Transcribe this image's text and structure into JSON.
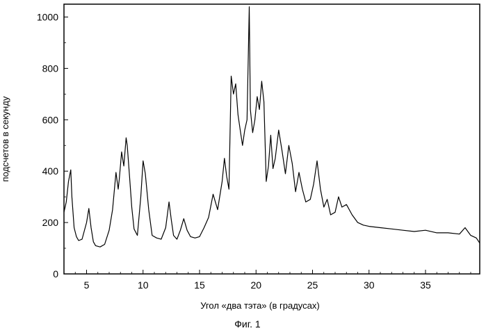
{
  "chart_data": {
    "type": "line",
    "title": "",
    "xlabel": "Угол «два тэта» (в градусах)",
    "ylabel": "подсчетов в секунду",
    "caption": "Фиг. 1",
    "xlim": [
      3,
      39.8
    ],
    "ylim": [
      0,
      1050
    ],
    "x_ticks": [
      5,
      10,
      15,
      20,
      25,
      30,
      35
    ],
    "y_ticks": [
      0,
      200,
      400,
      600,
      800,
      1000
    ],
    "grid": false,
    "legend": "none",
    "line_color": "#000000",
    "series": [
      {
        "x": [
          3.0,
          3.2,
          3.4,
          3.6,
          3.7,
          3.9,
          4.1,
          4.3,
          4.6,
          5.0,
          5.2,
          5.4,
          5.6,
          5.8,
          6.2,
          6.6,
          7.0,
          7.3,
          7.6,
          7.8,
          7.9,
          8.1,
          8.3,
          8.5,
          8.6,
          8.8,
          9.0,
          9.2,
          9.5,
          9.8,
          10.0,
          10.2,
          10.5,
          10.8,
          11.2,
          11.6,
          12.0,
          12.3,
          12.5,
          12.7,
          13.0,
          13.3,
          13.6,
          13.9,
          14.2,
          14.6,
          15.0,
          15.4,
          15.8,
          16.2,
          16.6,
          17.0,
          17.2,
          17.4,
          17.6,
          17.8,
          18.0,
          18.2,
          18.4,
          18.6,
          18.8,
          19.0,
          19.2,
          19.4,
          19.5,
          19.7,
          19.9,
          20.1,
          20.3,
          20.5,
          20.7,
          20.9,
          21.1,
          21.3,
          21.5,
          21.7,
          22.0,
          22.3,
          22.6,
          22.9,
          23.2,
          23.5,
          23.8,
          24.1,
          24.4,
          24.8,
          25.1,
          25.4,
          25.7,
          26.0,
          26.3,
          26.6,
          27.0,
          27.3,
          27.6,
          28.0,
          28.5,
          29.0,
          29.5,
          30.0,
          31.0,
          32.0,
          33.0,
          34.0,
          35.0,
          36.0,
          37.0,
          38.0,
          38.5,
          39.0,
          39.5,
          39.8
        ],
        "y": [
          240,
          280,
          360,
          405,
          300,
          180,
          145,
          130,
          135,
          200,
          255,
          180,
          125,
          110,
          105,
          115,
          170,
          250,
          395,
          330,
          370,
          475,
          420,
          530,
          500,
          380,
          260,
          175,
          150,
          300,
          440,
          390,
          250,
          150,
          140,
          135,
          180,
          280,
          210,
          150,
          135,
          170,
          215,
          170,
          145,
          140,
          145,
          180,
          220,
          310,
          250,
          360,
          450,
          380,
          330,
          770,
          700,
          740,
          620,
          560,
          500,
          560,
          600,
          1040,
          640,
          550,
          600,
          690,
          640,
          750,
          670,
          360,
          420,
          540,
          410,
          450,
          560,
          480,
          390,
          500,
          430,
          320,
          395,
          330,
          280,
          290,
          350,
          440,
          330,
          260,
          290,
          230,
          240,
          300,
          260,
          270,
          230,
          200,
          190,
          185,
          180,
          175,
          170,
          165,
          170,
          160,
          160,
          155,
          180,
          150,
          140,
          120
        ]
      }
    ]
  }
}
